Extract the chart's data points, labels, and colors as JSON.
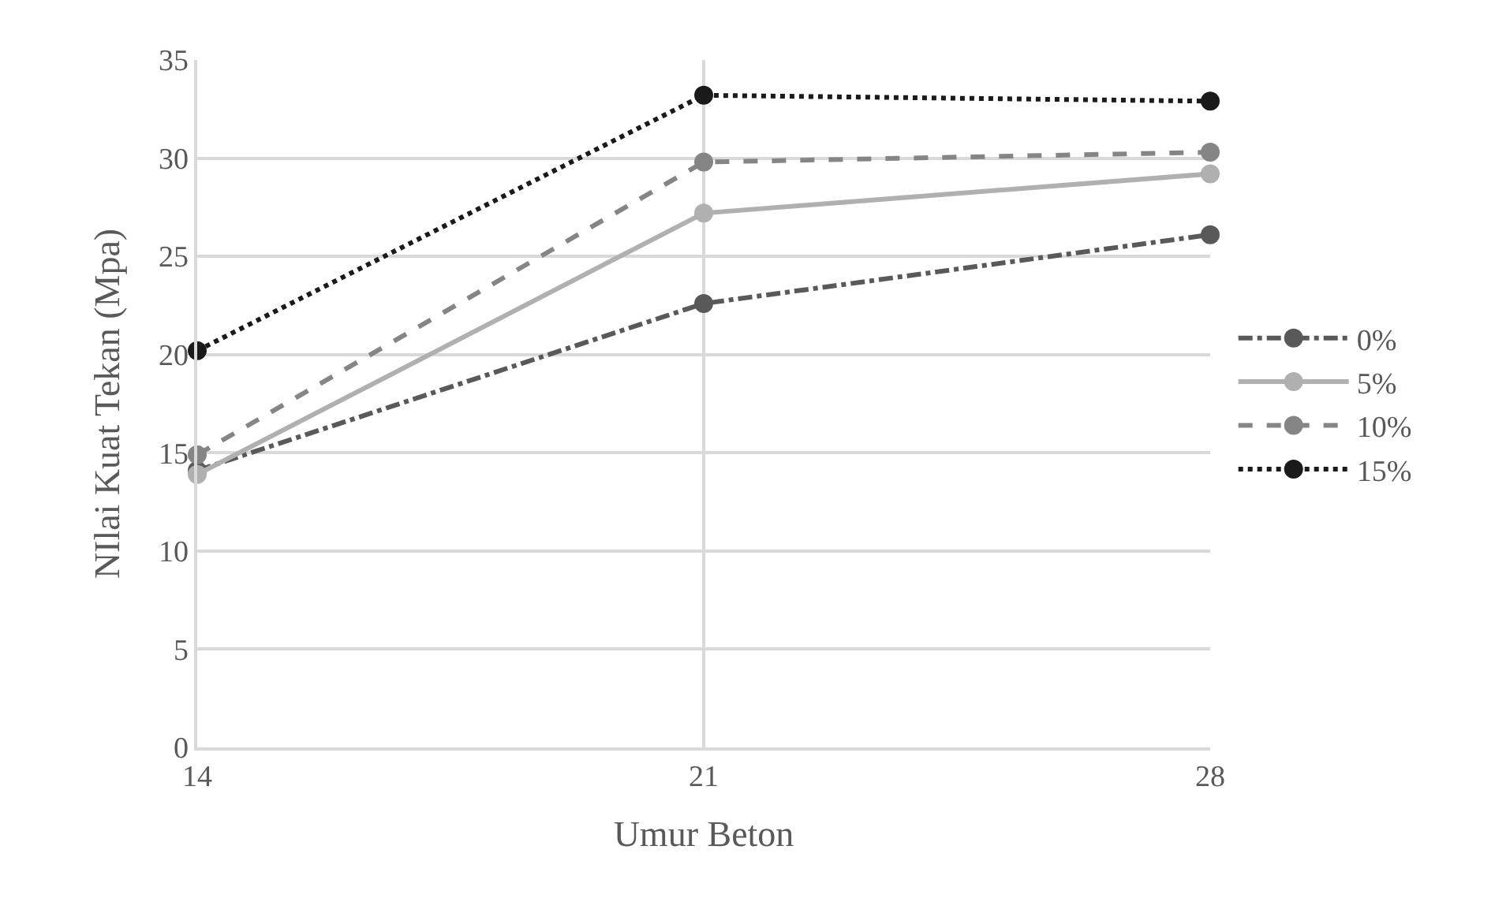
{
  "chart_data": {
    "type": "line",
    "xlabel": "Umur Beton",
    "ylabel": "NIlai Kuat Tekan (Mpa)",
    "categories": [
      "14",
      "21",
      "28"
    ],
    "series": [
      {
        "name": "0%",
        "color": "#595959",
        "line_style": "dashdot",
        "values": [
          14.1,
          22.6,
          26.1
        ]
      },
      {
        "name": "5%",
        "color": "#b0b0b0",
        "line_style": "solid",
        "values": [
          13.9,
          27.2,
          29.2
        ]
      },
      {
        "name": "10%",
        "color": "#858585",
        "line_style": "dashed",
        "values": [
          14.9,
          29.8,
          30.3
        ]
      },
      {
        "name": "15%",
        "color": "#1a1a1a",
        "line_style": "dotted",
        "values": [
          20.2,
          33.2,
          32.9
        ]
      }
    ],
    "ylim": [
      0,
      35
    ],
    "yticks": [
      0,
      5,
      10,
      15,
      20,
      25,
      30,
      35
    ],
    "grid": true,
    "legend": "right",
    "marker": "circle"
  }
}
